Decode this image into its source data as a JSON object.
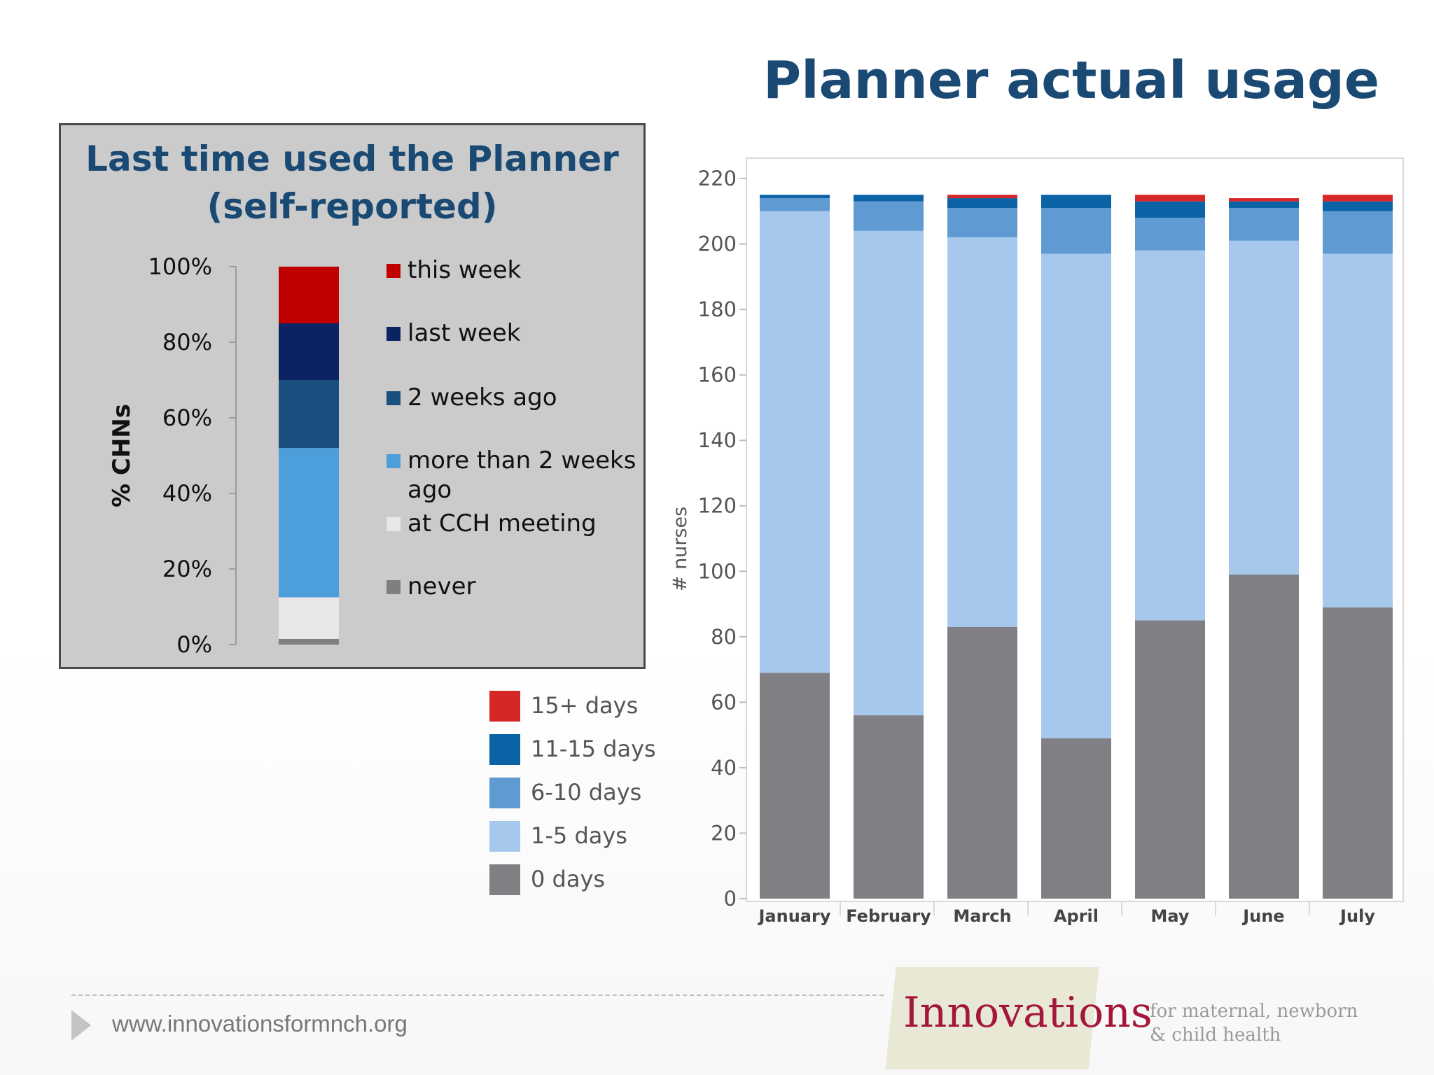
{
  "page": {
    "title": "Planner actual usage",
    "footer_url": "www.innovationsformnch.org",
    "logo_word": "Innovations",
    "logo_tagline_line1": "for maternal, newborn",
    "logo_tagline_line2": "& child health"
  },
  "chart_data": [
    {
      "type": "bar",
      "stacked": true,
      "title": "Last time used the Planner (self-reported)",
      "title_lines": [
        "Last time used the Planner",
        "(self-reported)"
      ],
      "ylabel": "% CHNs",
      "ylim": [
        0,
        100
      ],
      "yticks": [
        "0%",
        "20%",
        "40%",
        "60%",
        "80%",
        "100%"
      ],
      "ytick_values": [
        0,
        20,
        40,
        60,
        80,
        100
      ],
      "legend_position": "right",
      "grid": false,
      "series": [
        {
          "name": "never",
          "color": "#7f7f7f",
          "value": 1.5
        },
        {
          "name": "at CCH meeting",
          "color": "#e8e6e8",
          "value": 11
        },
        {
          "name": "more than 2 weeks ago",
          "color": "#4d9fdb",
          "value": 39.5
        },
        {
          "name": "2 weeks ago",
          "color": "#1a4f7f",
          "value": 18
        },
        {
          "name": "last week",
          "color": "#0b2363",
          "value": 15
        },
        {
          "name": "this week",
          "color": "#c00000",
          "value": 15
        }
      ],
      "legend_order": [
        "this week",
        "last week",
        "2 weeks ago",
        "more than 2 weeks ago",
        "at CCH meeting",
        "never"
      ]
    },
    {
      "type": "bar",
      "stacked": true,
      "title": "Planner actual usage",
      "ylabel": "# nurses",
      "ylim": [
        0,
        220
      ],
      "yticks": [
        0,
        20,
        40,
        60,
        80,
        100,
        120,
        140,
        160,
        180,
        200,
        220
      ],
      "grid": false,
      "legend_position": "left",
      "categories": [
        "January",
        "February",
        "March",
        "April",
        "May",
        "June",
        "July"
      ],
      "series": [
        {
          "name": "0 days",
          "color": "#807f83",
          "values": [
            69,
            56,
            83,
            49,
            85,
            99,
            89
          ]
        },
        {
          "name": "1-5 days",
          "color": "#a6c8ec",
          "values": [
            141,
            148,
            119,
            148,
            113,
            102,
            108
          ]
        },
        {
          "name": "6-10 days",
          "color": "#5f9bd2",
          "values": [
            4,
            9,
            9,
            14,
            10,
            10,
            13
          ]
        },
        {
          "name": "11-15 days",
          "color": "#0b62a4",
          "values": [
            1,
            2,
            3,
            4,
            5,
            2,
            3
          ]
        },
        {
          "name": "15+ days",
          "color": "#d62728",
          "values": [
            0,
            0,
            1,
            0,
            2,
            1,
            2
          ]
        }
      ],
      "legend_order": [
        "15+ days",
        "11-15 days",
        "6-10 days",
        "1-5 days",
        "0 days"
      ]
    }
  ]
}
